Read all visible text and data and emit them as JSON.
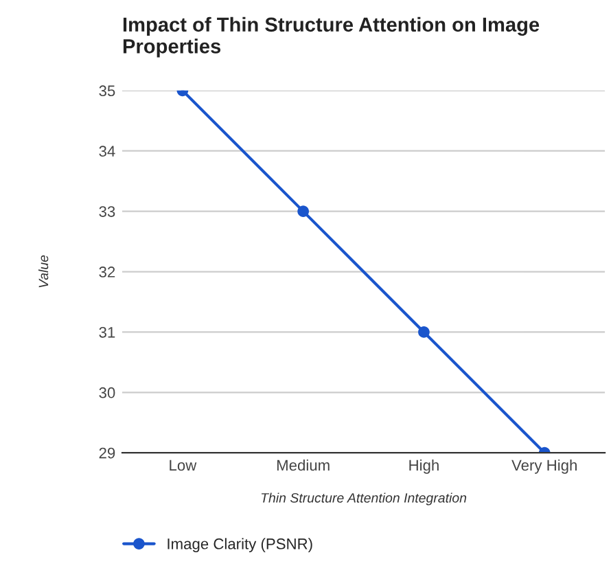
{
  "chart_data": {
    "type": "line",
    "title": "Impact of Thin Structure Attention on Image Properties",
    "xlabel": "Thin Structure Attention Integration",
    "ylabel": "Value",
    "categories": [
      "Low",
      "Medium",
      "High",
      "Very High"
    ],
    "series": [
      {
        "name": "Image Clarity (PSNR)",
        "color": "#1a55cc",
        "values": [
          35,
          33,
          31,
          29
        ]
      }
    ],
    "ylim": [
      29,
      35
    ],
    "yticks": [
      29,
      30,
      31,
      32,
      33,
      34,
      35
    ],
    "grid": "y",
    "legend": "bottom",
    "marker": "circle",
    "line_style": "solid"
  }
}
